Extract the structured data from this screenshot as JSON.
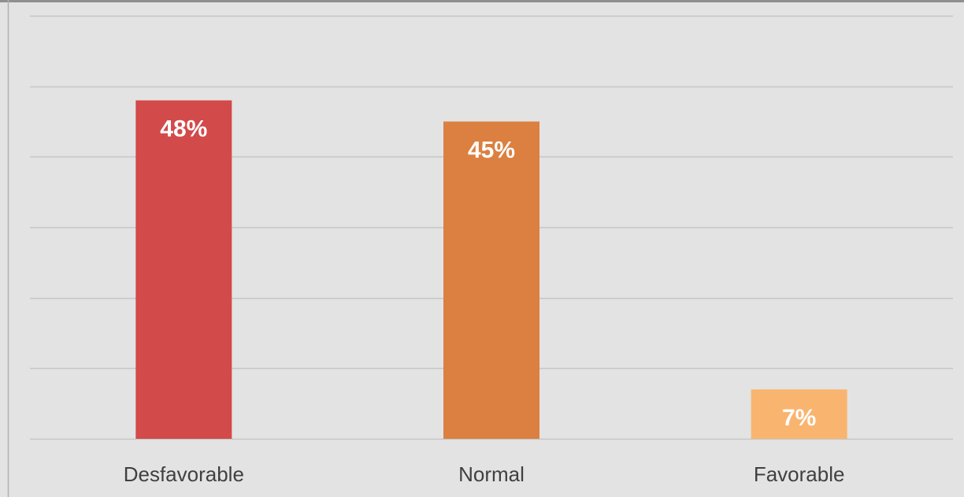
{
  "chart_data": {
    "type": "bar",
    "categories": [
      "Desfavorable",
      "Normal",
      "Favorable"
    ],
    "values": [
      48,
      45,
      7
    ],
    "data_labels": [
      "48%",
      "45%",
      "7%"
    ],
    "colors": [
      "#d24a4a",
      "#db8040",
      "#f9b46f"
    ],
    "ylim": [
      0,
      60
    ],
    "grid": true,
    "legend": "none"
  },
  "style": {
    "background": "#e3e3e3",
    "gridline_color": "#c6c6c6",
    "frame_color": "#8f8f8f"
  }
}
